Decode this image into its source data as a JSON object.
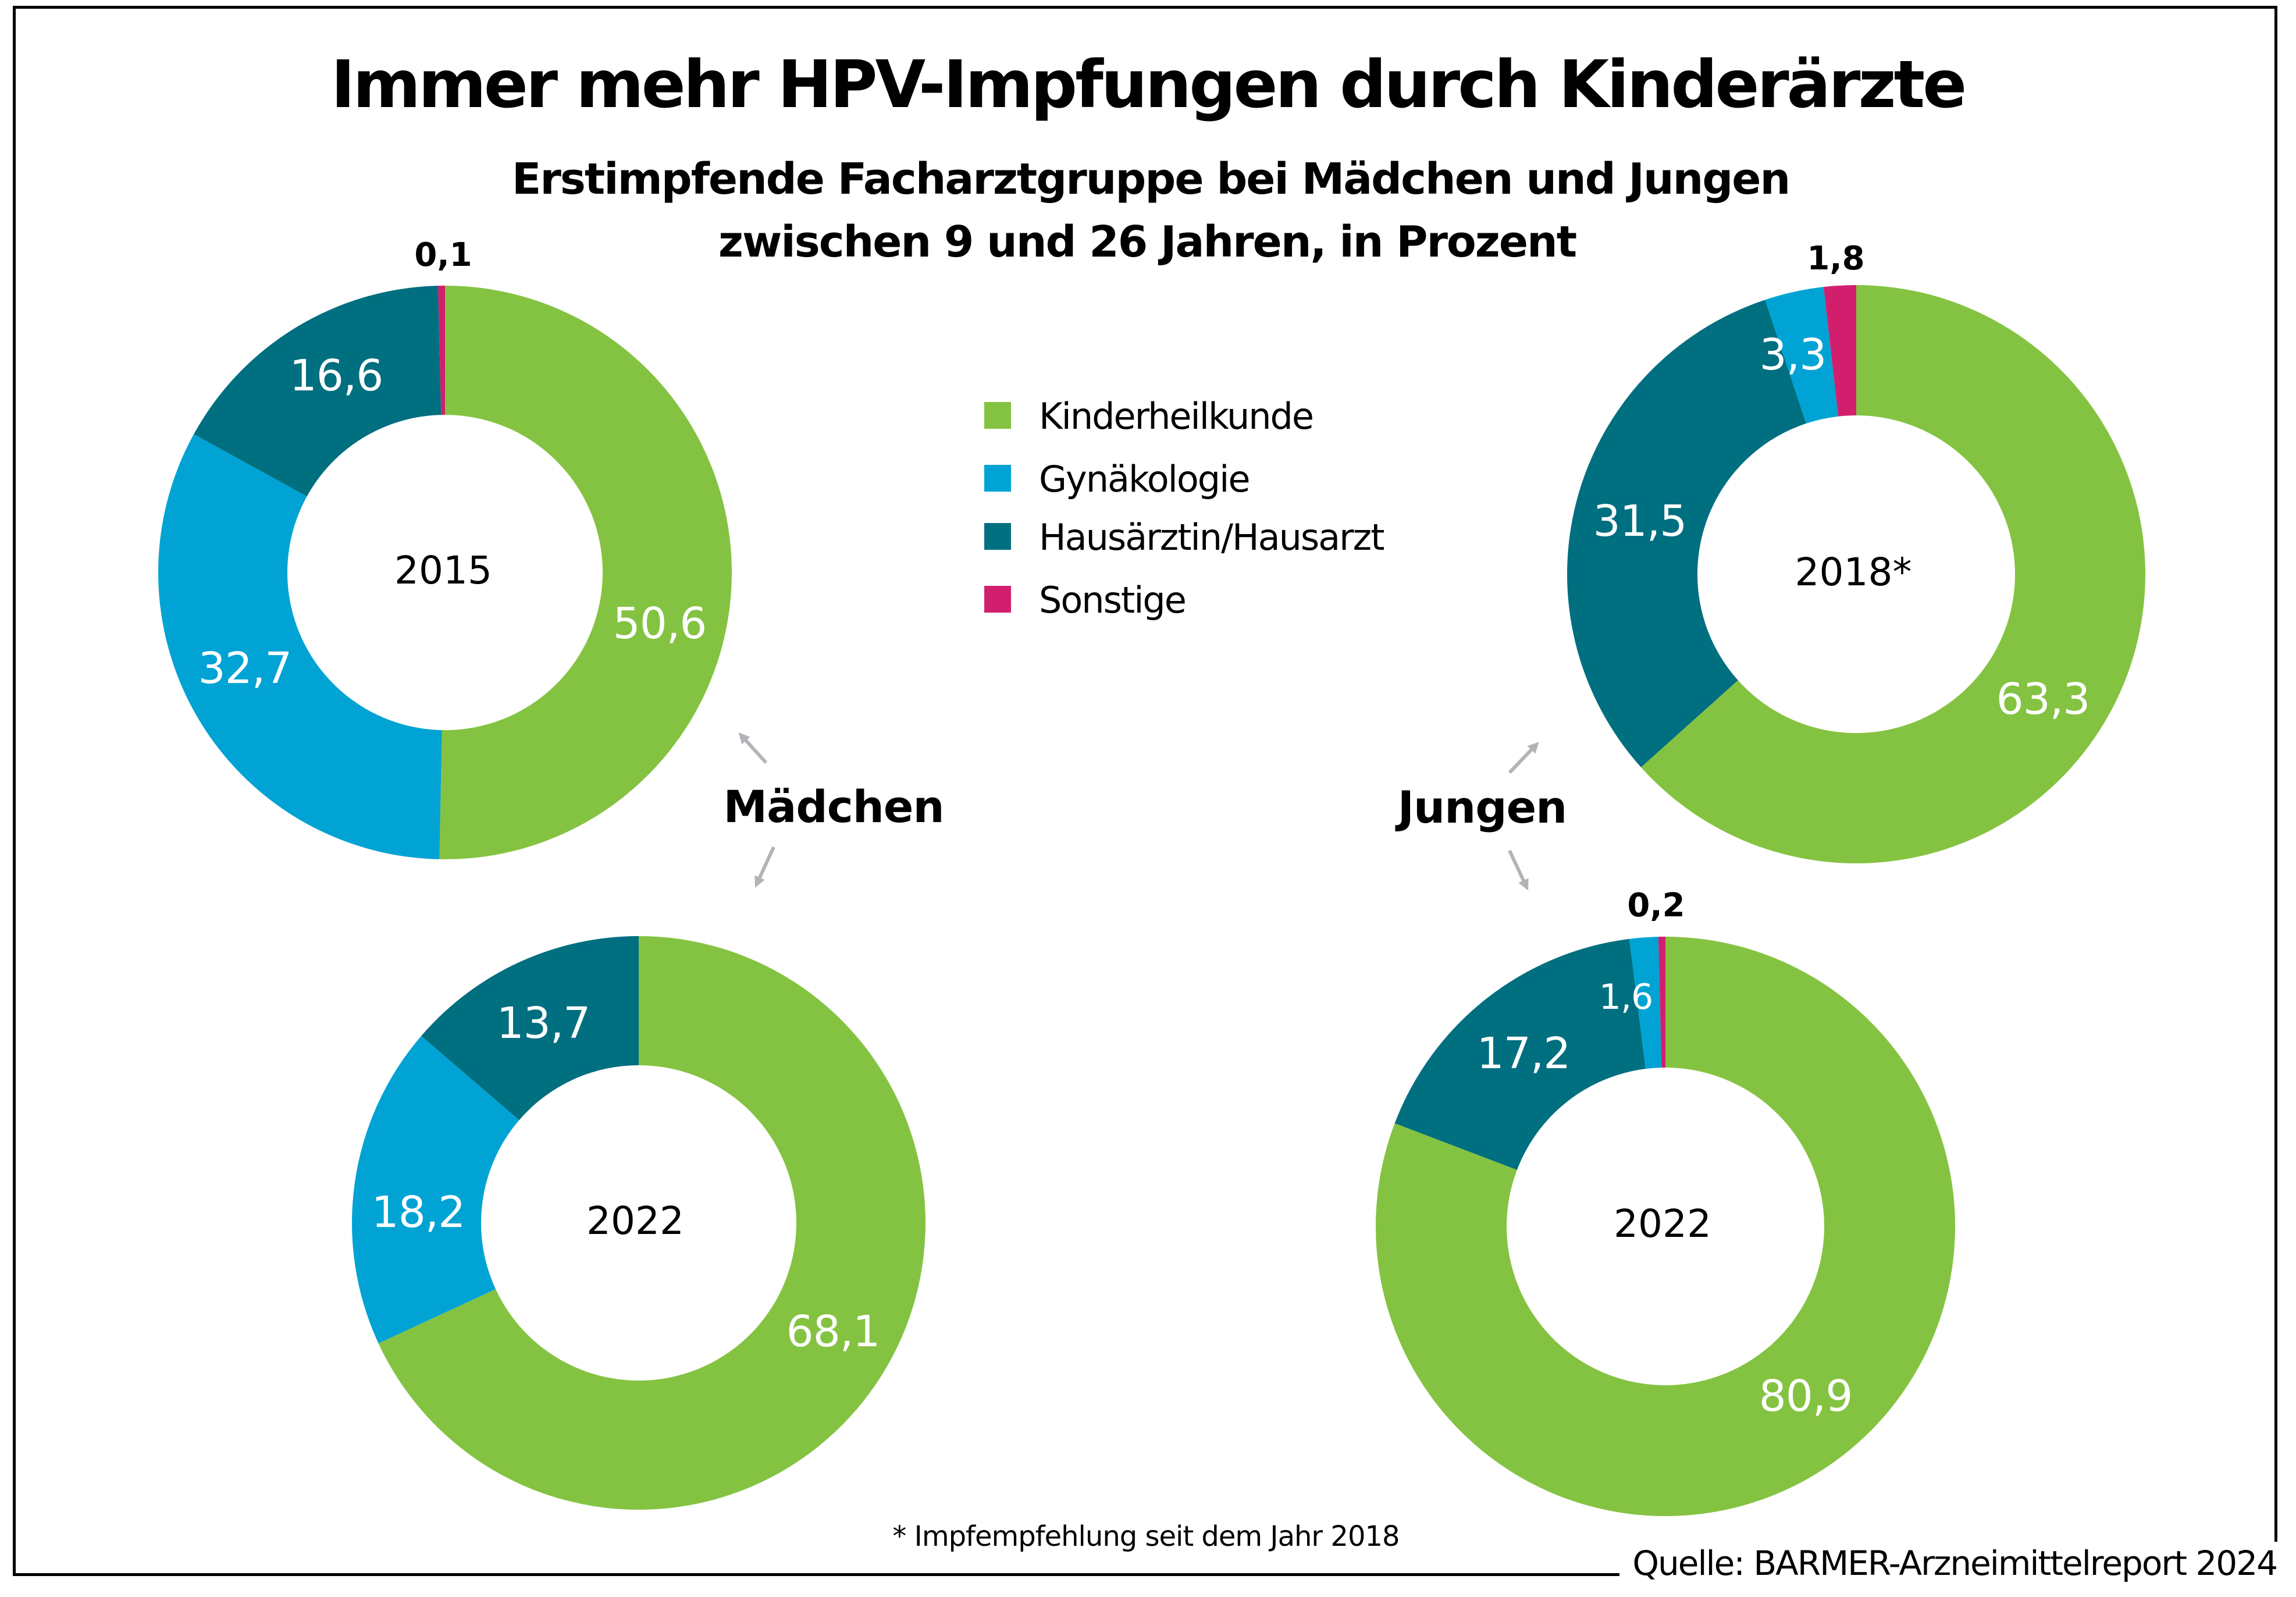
{
  "colors": {
    "Kinderheilkunde": "#84C341",
    "Gynäkologie": "#00A3D4",
    "Hausärztin/Hausarzt": "#006F80",
    "Sonstige": "#D11F6E",
    "arrow": "#B3B4B8"
  },
  "chart_data": {
    "type": "pie",
    "variant": "donut",
    "title": "Immer mehr HPV-Impfungen durch Kinderärzte",
    "subtitle": [
      "Erstimpfende Facharztgruppe bei Mädchen und Jungen",
      "zwischen 9 und 26 Jahren, in Prozent"
    ],
    "unit": "Prozent",
    "legend": {
      "placement": "top-center",
      "entries": [
        "Kinderheilkunde",
        "Gynäkologie",
        "Hausärztin/Hausarzt",
        "Sonstige"
      ]
    },
    "groups": [
      {
        "name": "Mädchen",
        "charts": [
          "maedchen-2015",
          "maedchen-2022"
        ]
      },
      {
        "name": "Jungen",
        "charts": [
          "jungen-2018",
          "jungen-2022"
        ]
      }
    ],
    "charts": [
      {
        "id": "maedchen-2015",
        "group": "Mädchen",
        "year_label": "2015",
        "slices": [
          {
            "category": "Kinderheilkunde",
            "value": 50.6,
            "label": "50,6"
          },
          {
            "category": "Gynäkologie",
            "value": 32.7,
            "label": "32,7"
          },
          {
            "category": "Hausärztin/Hausarzt",
            "value": 16.6,
            "label": "16,6"
          },
          {
            "category": "Sonstige",
            "value": 0.1,
            "label": "0,1"
          }
        ]
      },
      {
        "id": "jungen-2018",
        "group": "Jungen",
        "year_label": "2018*",
        "slices": [
          {
            "category": "Kinderheilkunde",
            "value": 63.3,
            "label": "63,3"
          },
          {
            "category": "Hausärztin/Hausarzt",
            "value": 31.5,
            "label": "31,5"
          },
          {
            "category": "Gynäkologie",
            "value": 3.3,
            "label": "3,3"
          },
          {
            "category": "Sonstige",
            "value": 1.8,
            "label": "1,8"
          }
        ]
      },
      {
        "id": "maedchen-2022",
        "group": "Mädchen",
        "year_label": "2022",
        "slices": [
          {
            "category": "Kinderheilkunde",
            "value": 68.1,
            "label": "68,1"
          },
          {
            "category": "Gynäkologie",
            "value": 18.2,
            "label": "18,2"
          },
          {
            "category": "Hausärztin/Hausarzt",
            "value": 13.7,
            "label": "13,7"
          }
        ]
      },
      {
        "id": "jungen-2022",
        "group": "Jungen",
        "year_label": "2022",
        "slices": [
          {
            "category": "Kinderheilkunde",
            "value": 80.9,
            "label": "80,9"
          },
          {
            "category": "Hausärztin/Hausarzt",
            "value": 17.2,
            "label": "17,2"
          },
          {
            "category": "Gynäkologie",
            "value": 1.6,
            "label": "1,6"
          },
          {
            "category": "Sonstige",
            "value": 0.2,
            "label": "0,2"
          }
        ]
      }
    ],
    "footnote": "* Impfempfehlung seit dem Jahr 2018",
    "source": "Quelle: BARMER-Arzneimittelreport 2024"
  }
}
